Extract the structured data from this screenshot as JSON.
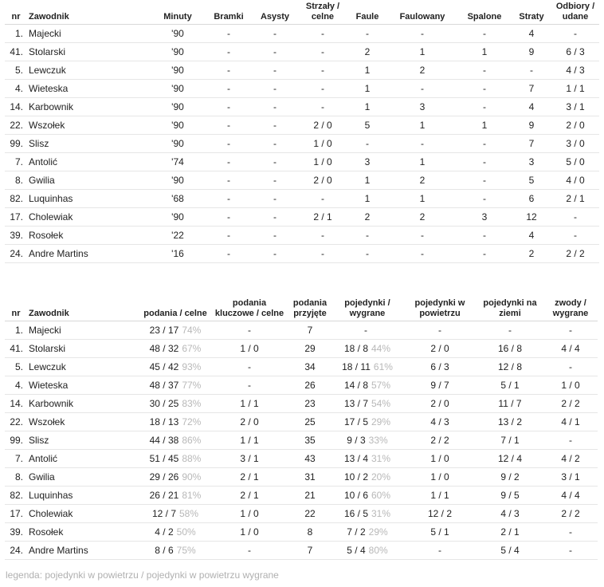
{
  "table1": {
    "headers": [
      "nr",
      "Zawodnik",
      "Minuty",
      "Bramki",
      "Asysty",
      "Strzały / celne",
      "Faule",
      "Faulowany",
      "Spalone",
      "Straty",
      "Odbiory / udane"
    ],
    "rows": [
      [
        "1.",
        "Majecki",
        "'90",
        "-",
        "-",
        "-",
        "-",
        "-",
        "-",
        "4",
        "-"
      ],
      [
        "41.",
        "Stolarski",
        "'90",
        "-",
        "-",
        "-",
        "2",
        "1",
        "1",
        "9",
        "6 / 3"
      ],
      [
        "5.",
        "Lewczuk",
        "'90",
        "-",
        "-",
        "-",
        "1",
        "2",
        "-",
        "-",
        "4 / 3"
      ],
      [
        "4.",
        "Wieteska",
        "'90",
        "-",
        "-",
        "-",
        "1",
        "-",
        "-",
        "7",
        "1 / 1"
      ],
      [
        "14.",
        "Karbownik",
        "'90",
        "-",
        "-",
        "-",
        "1",
        "3",
        "-",
        "4",
        "3 / 1"
      ],
      [
        "22.",
        "Wszołek",
        "'90",
        "-",
        "-",
        "2 / 0",
        "5",
        "1",
        "1",
        "9",
        "2 / 0"
      ],
      [
        "99.",
        "Slisz",
        "'90",
        "-",
        "-",
        "1 / 0",
        "-",
        "-",
        "-",
        "7",
        "3 / 0"
      ],
      [
        "7.",
        "Antolić",
        "'74",
        "-",
        "-",
        "1 / 0",
        "3",
        "1",
        "-",
        "3",
        "5 / 0"
      ],
      [
        "8.",
        "Gwilia",
        "'90",
        "-",
        "-",
        "2 / 0",
        "1",
        "2",
        "-",
        "5",
        "4 / 0"
      ],
      [
        "82.",
        "Luquinhas",
        "'68",
        "-",
        "-",
        "-",
        "1",
        "1",
        "-",
        "6",
        "2 / 1"
      ],
      [
        "17.",
        "Cholewiak",
        "'90",
        "-",
        "-",
        "2 / 1",
        "2",
        "2",
        "3",
        "12",
        "-"
      ],
      [
        "39.",
        "Rosołek",
        "'22",
        "-",
        "-",
        "-",
        "-",
        "-",
        "-",
        "4",
        "-"
      ],
      [
        "24.",
        "Andre Martins",
        "'16",
        "-",
        "-",
        "-",
        "-",
        "-",
        "-",
        "2",
        "2 / 2"
      ]
    ]
  },
  "table2": {
    "headers": [
      "nr",
      "Zawodnik",
      "podania / celne",
      "podania kluczowe / celne",
      "podania przyjęte",
      "pojedynki / wygrane",
      "pojedynki w powietrzu",
      "pojedynki na ziemi",
      "zwody / wygrane"
    ],
    "rows": [
      [
        "1.",
        "Majecki",
        "23 / 17",
        "74%",
        "-",
        "7",
        "-",
        "",
        "-",
        "-",
        "-"
      ],
      [
        "41.",
        "Stolarski",
        "48 / 32",
        "67%",
        "1 / 0",
        "29",
        "18 / 8",
        "44%",
        "2 / 0",
        "16 / 8",
        "4 / 4"
      ],
      [
        "5.",
        "Lewczuk",
        "45 / 42",
        "93%",
        "-",
        "34",
        "18 / 11",
        "61%",
        "6 / 3",
        "12 / 8",
        "-"
      ],
      [
        "4.",
        "Wieteska",
        "48 / 37",
        "77%",
        "-",
        "26",
        "14 / 8",
        "57%",
        "9 / 7",
        "5 / 1",
        "1 / 0"
      ],
      [
        "14.",
        "Karbownik",
        "30 / 25",
        "83%",
        "1 / 1",
        "23",
        "13 / 7",
        "54%",
        "2 / 0",
        "11 / 7",
        "2 / 2"
      ],
      [
        "22.",
        "Wszołek",
        "18 / 13",
        "72%",
        "2 / 0",
        "25",
        "17 / 5",
        "29%",
        "4 / 3",
        "13 / 2",
        "4 / 1"
      ],
      [
        "99.",
        "Slisz",
        "44 / 38",
        "86%",
        "1 / 1",
        "35",
        "9 / 3",
        "33%",
        "2 / 2",
        "7 / 1",
        "-"
      ],
      [
        "7.",
        "Antolić",
        "51 / 45",
        "88%",
        "3 / 1",
        "43",
        "13 / 4",
        "31%",
        "1 / 0",
        "12 / 4",
        "4 / 2"
      ],
      [
        "8.",
        "Gwilia",
        "29 / 26",
        "90%",
        "2 / 1",
        "31",
        "10 / 2",
        "20%",
        "1 / 0",
        "9 / 2",
        "3 / 1"
      ],
      [
        "82.",
        "Luquinhas",
        "26 / 21",
        "81%",
        "2 / 1",
        "21",
        "10 / 6",
        "60%",
        "1 / 1",
        "9 / 5",
        "4 / 4"
      ],
      [
        "17.",
        "Cholewiak",
        "12 / 7",
        "58%",
        "1 / 0",
        "22",
        "16 / 5",
        "31%",
        "12 / 2",
        "4 / 3",
        "2 / 2"
      ],
      [
        "39.",
        "Rosołek",
        "4 / 2",
        "50%",
        "1 / 0",
        "8",
        "7 / 2",
        "29%",
        "5 / 1",
        "2 / 1",
        "-"
      ],
      [
        "24.",
        "Andre Martins",
        "8 / 6",
        "75%",
        "-",
        "7",
        "5 / 4",
        "80%",
        "-",
        "5 / 4",
        "-"
      ]
    ]
  },
  "legend": "legenda: pojedynki w powietrzu / pojedynki w powietrzu wygrane"
}
